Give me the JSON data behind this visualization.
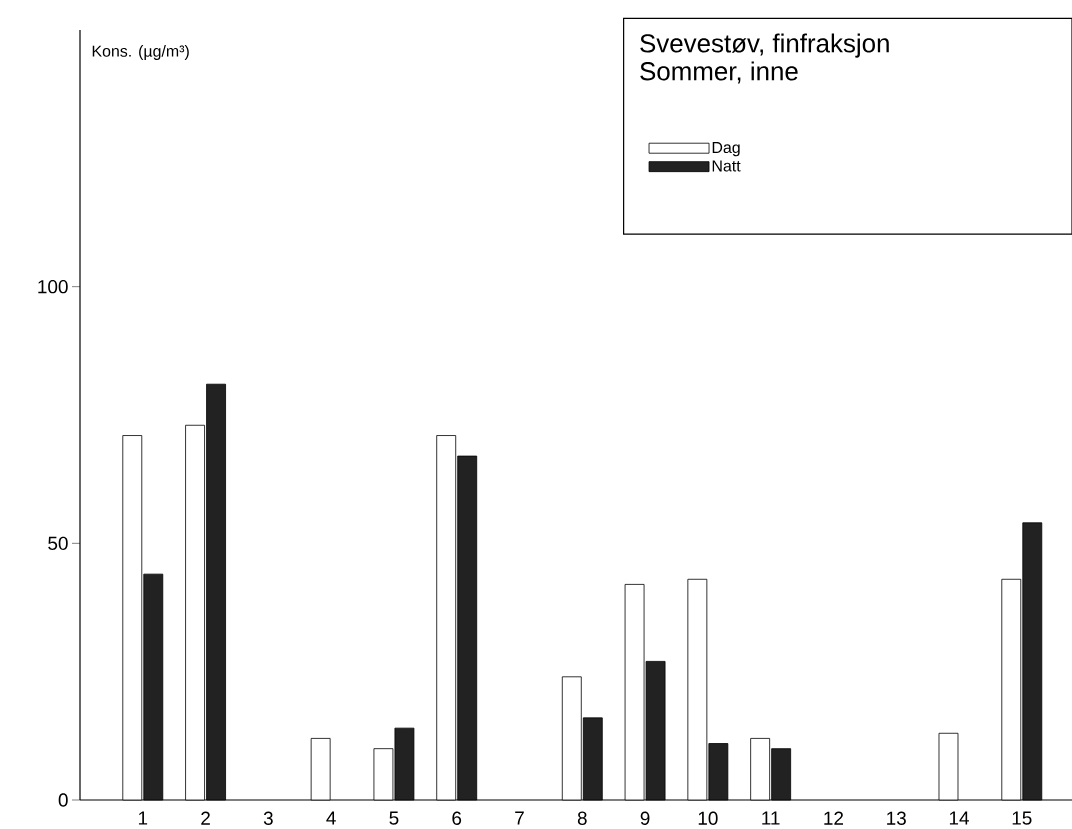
{
  "chart_data": {
    "type": "bar",
    "title": "Svevestøv, finfraksjon",
    "subtitle": "Sommer, inne",
    "ylabel": "Kons. (µg/m³)",
    "categories": [
      "1",
      "2",
      "3",
      "4",
      "5",
      "6",
      "7",
      "8",
      "9",
      "10",
      "11",
      "12",
      "13",
      "14",
      "15"
    ],
    "series": [
      {
        "name": "Dag",
        "color": "#ffffff",
        "values": [
          71,
          73,
          null,
          12,
          10,
          71,
          null,
          24,
          42,
          43,
          12,
          null,
          null,
          13,
          43
        ]
      },
      {
        "name": "Natt",
        "color": "#222222",
        "values": [
          44,
          81,
          null,
          null,
          14,
          67,
          null,
          16,
          27,
          11,
          10,
          null,
          null,
          null,
          54
        ]
      }
    ],
    "ylim": [
      0,
      150
    ],
    "yticks": [
      0,
      50,
      100
    ],
    "legend": "top right"
  }
}
